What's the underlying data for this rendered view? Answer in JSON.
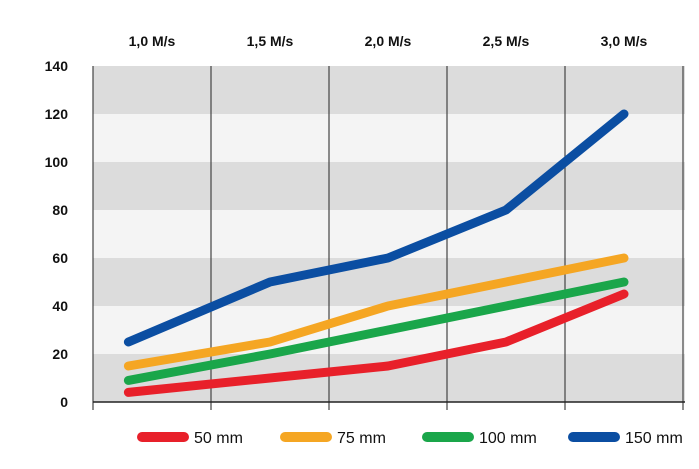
{
  "chart_data": {
    "type": "line",
    "categories": [
      "1,0 M/s",
      "1,5 M/s",
      "2,0 M/s",
      "2,5 M/s",
      "3,0 M/s"
    ],
    "x_axis_position": "top",
    "ylim": [
      0,
      140
    ],
    "yticks": [
      "0",
      "20",
      "40",
      "60",
      "80",
      "100",
      "120",
      "140"
    ],
    "grid": true,
    "legend_position": "bottom",
    "series": [
      {
        "name": "50 mm",
        "color": "#e8202a",
        "points": [
          [
            0.3,
            4
          ],
          [
            1.5,
            10
          ],
          [
            2.5,
            15
          ],
          [
            3.5,
            25
          ],
          [
            4.5,
            45
          ]
        ]
      },
      {
        "name": "75 mm",
        "color": "#f5a623",
        "points": [
          [
            0.3,
            15
          ],
          [
            1.5,
            25
          ],
          [
            2.5,
            40
          ],
          [
            3.5,
            50
          ],
          [
            4.5,
            60
          ]
        ]
      },
      {
        "name": "100 mm",
        "color": "#1aa64a",
        "points": [
          [
            0.3,
            9
          ],
          [
            1.5,
            20
          ],
          [
            2.5,
            30
          ],
          [
            3.5,
            40
          ],
          [
            4.5,
            50
          ]
        ]
      },
      {
        "name": "150 mm",
        "color": "#0b4ea2",
        "points": [
          [
            0.3,
            25
          ],
          [
            1.5,
            50
          ],
          [
            2.5,
            60
          ],
          [
            3.5,
            80
          ],
          [
            4.5,
            120
          ]
        ]
      }
    ]
  }
}
